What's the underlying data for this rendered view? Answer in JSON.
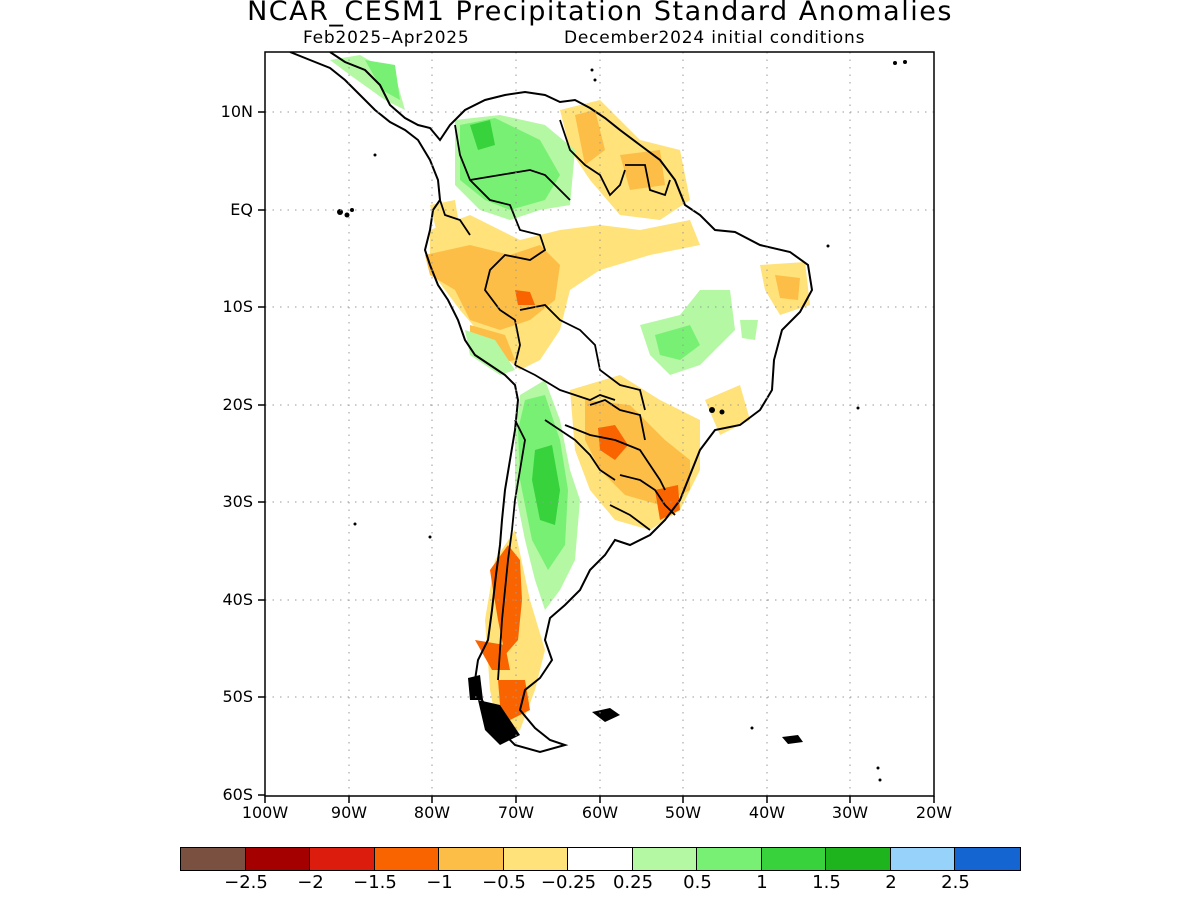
{
  "title": "NCAR_CESM1 Precipitation Standard Anomalies",
  "subtitle_left": "Feb2025–Apr2025",
  "subtitle_right": "December2024 initial conditions",
  "lat_labels": [
    "10N",
    "EQ",
    "10S",
    "20S",
    "30S",
    "40S",
    "50S",
    "60S"
  ],
  "lon_labels": [
    "100W",
    "90W",
    "80W",
    "70W",
    "60W",
    "50W",
    "40W",
    "30W",
    "20W"
  ],
  "colorbar": {
    "colors": [
      "#7a5040",
      "#a50000",
      "#dc1c0c",
      "#fa6400",
      "#fcbe46",
      "#ffe27a",
      "#ffffff",
      "#b4f8a4",
      "#78f074",
      "#37d23c",
      "#1eb41e",
      "#96d2fa",
      "#1464d2"
    ],
    "labels": [
      "−2.5",
      "−2",
      "−1.5",
      "−1",
      "−0.5",
      "−0.25",
      "0.25",
      "0.5",
      "1",
      "1.5",
      "2",
      "2.5"
    ]
  },
  "colors": {
    "dry_strong": "#fa6400",
    "dry_moderate": "#fcbe46",
    "dry_weak": "#ffe27a",
    "wet_weak": "#b4f8a4",
    "wet_moderate": "#78f074",
    "wet_strong": "#37d23c"
  }
}
